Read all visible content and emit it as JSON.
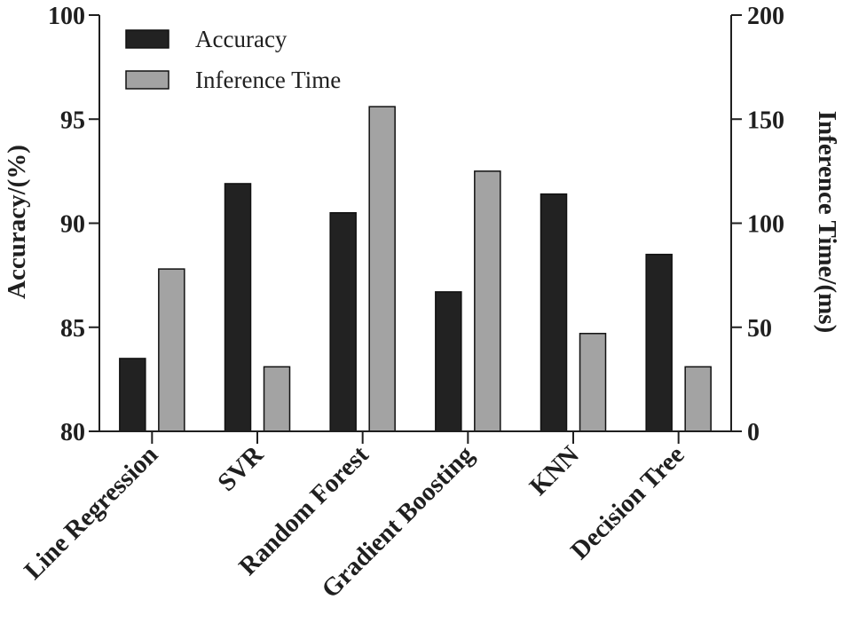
{
  "chart_data": {
    "type": "bar",
    "categories": [
      "Line Regression",
      "SVR",
      "Random Forest",
      "Gradient Boosting",
      "KNN",
      "Decision Tree"
    ],
    "series": [
      {
        "name": "Accuracy",
        "axis": "left",
        "color": "#222222",
        "values": [
          83.5,
          91.9,
          90.5,
          86.7,
          91.4,
          88.5
        ]
      },
      {
        "name": "Inference Time",
        "axis": "right",
        "color": "#a3a3a3",
        "values": [
          78,
          31,
          156,
          125,
          47,
          31
        ]
      }
    ],
    "ylabel": "Accuracy/(%)",
    "ylabel_right": "Inference Time/(ms)",
    "ylim": [
      80,
      100
    ],
    "ylim_right": [
      0,
      200
    ],
    "yticks": [
      80,
      85,
      90,
      95,
      100
    ],
    "yticks_right": [
      0,
      50,
      100,
      150,
      200
    ],
    "legend_position": "top-left",
    "grid": false
  }
}
